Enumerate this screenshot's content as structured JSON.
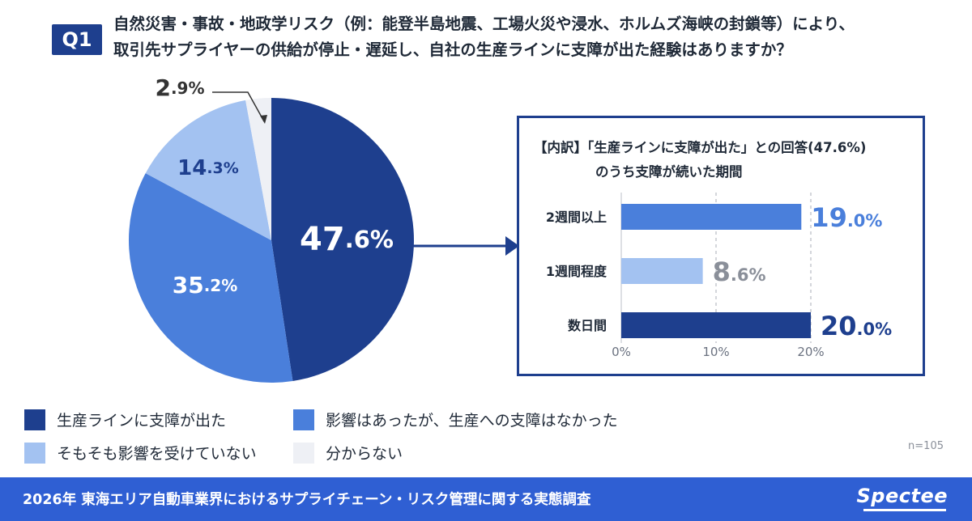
{
  "question": {
    "badge": "Q1",
    "line1": "自然災害・事故・地政学リスク（例：能登半島地震、工場火災や浸水、ホルムズ海峡の封鎖等）により、",
    "line2": "取引先サプライヤーの供給が停止・遅延し、自社の生産ラインに支障が出た経験はありますか？"
  },
  "chart_data": [
    {
      "type": "pie",
      "title": "",
      "slices": [
        {
          "label": "生産ラインに支障が出た",
          "value": 47.6,
          "display_int": "47",
          "display_dec": ".6%",
          "color": "#1e3f8e"
        },
        {
          "label": "影響はあったが、生産への支障はなかった",
          "value": 35.2,
          "display_int": "35",
          "display_dec": ".2%",
          "color": "#4a7fdb"
        },
        {
          "label": "そもそも影響を受けていない",
          "value": 14.3,
          "display_int": "14",
          "display_dec": ".3%",
          "color": "#a3c2f1"
        },
        {
          "label": "分からない",
          "value": 2.9,
          "display_int": "2",
          "display_dec": ".9%",
          "color": "#eef0f5"
        }
      ]
    },
    {
      "type": "bar",
      "orientation": "horizontal",
      "title": "【内訳】「生産ラインに支障が出た」との回答(47.6%) のうち支障が続いた期間",
      "categories": [
        "2週間以上",
        "1週間程度",
        "数日間"
      ],
      "values": [
        19.0,
        8.6,
        20.0
      ],
      "display_int": [
        "19",
        "8",
        "20"
      ],
      "display_dec": [
        ".0%",
        ".6%",
        ".0%"
      ],
      "colors": [
        "#4a7fdb",
        "#a3c2f1",
        "#1e3f8e"
      ],
      "label_colors": [
        "#4a7fdb",
        "#8a8f99",
        "#1e3f8e"
      ],
      "xticks": [
        "0%",
        "10%",
        "20%"
      ],
      "xlim": [
        0,
        20
      ]
    }
  ],
  "detail": {
    "title_line1": "【内訳】「生産ラインに支障が出た」との回答(47.6%)",
    "title_line2": "のうち支障が続いた期間"
  },
  "legend": {
    "items": [
      {
        "label": "生産ラインに支障が出た",
        "color": "#1e3f8e"
      },
      {
        "label": "影響はあったが、生産への支障はなかった",
        "color": "#4a7fdb"
      },
      {
        "label": "そもそも影響を受けていない",
        "color": "#a3c2f1"
      },
      {
        "label": "分からない",
        "color": "#eef0f5"
      }
    ]
  },
  "sample_note": "n=105",
  "footer": {
    "text": "2026年 東海エリア自動車業界におけるサプライチェーン・リスク管理に関する実態調査",
    "brand": "Spectee"
  }
}
